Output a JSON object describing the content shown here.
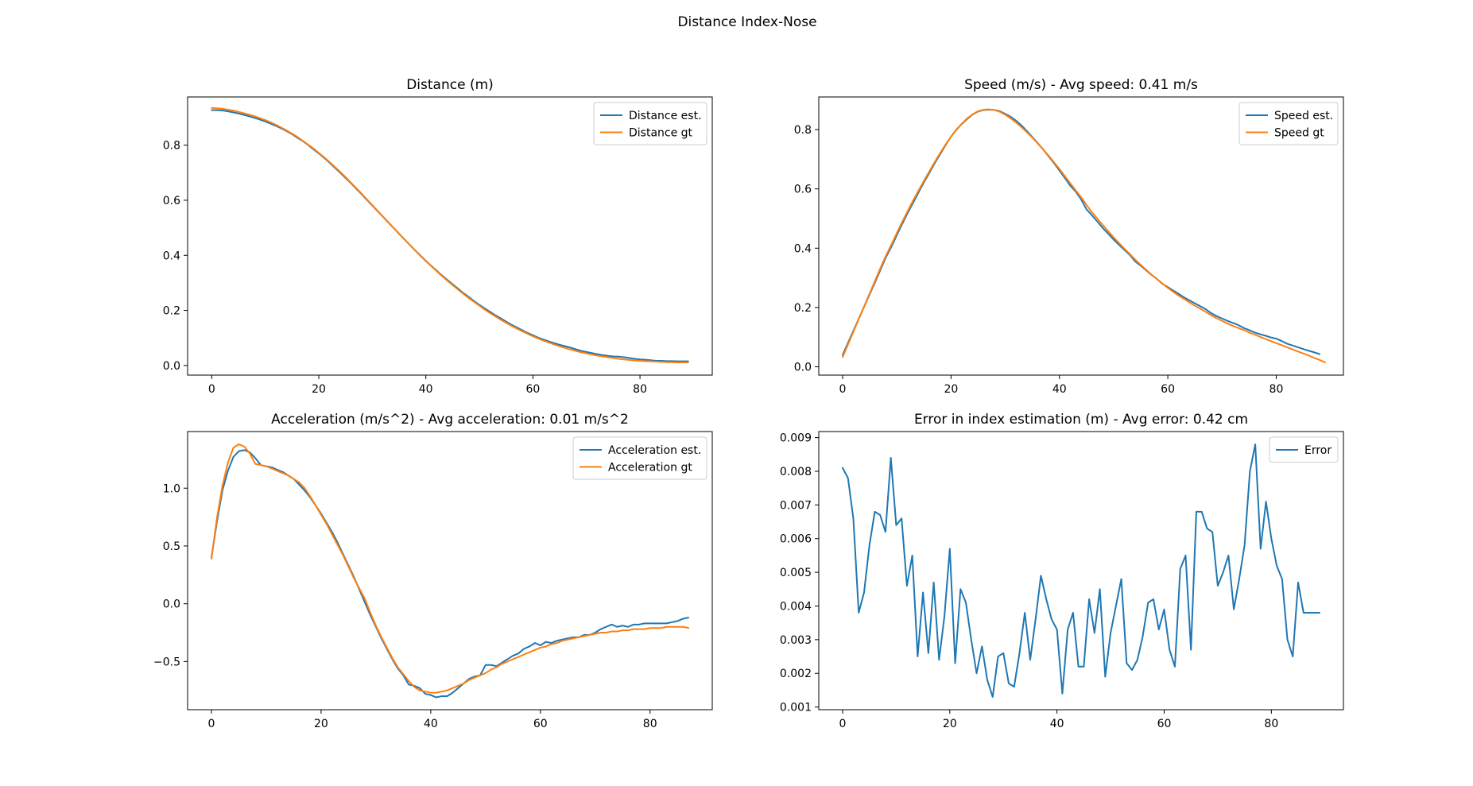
{
  "figure": {
    "title": "Distance Index-Nose",
    "colors": {
      "est": "#1f77b4",
      "gt": "#ff7f0e"
    }
  },
  "chart_data": [
    {
      "type": "line",
      "title": "Distance (m)",
      "xlim": [
        -4.5,
        93.5
      ],
      "ylim": [
        -0.035,
        0.975
      ],
      "xticks": [
        0,
        20,
        40,
        60,
        80
      ],
      "yticks": [
        0.0,
        0.2,
        0.4,
        0.6,
        0.8
      ],
      "ytick_labels": [
        "0.0",
        "0.2",
        "0.4",
        "0.6",
        "0.8"
      ],
      "legend_position": "upper right",
      "series": [
        {
          "name": "Distance est.",
          "color": "#1f77b4",
          "y": [
            0.927,
            0.927,
            0.926,
            0.923,
            0.919,
            0.915,
            0.91,
            0.905,
            0.899,
            0.893,
            0.886,
            0.878,
            0.87,
            0.861,
            0.851,
            0.84,
            0.827,
            0.815,
            0.801,
            0.785,
            0.77,
            0.754,
            0.737,
            0.718,
            0.7,
            0.681,
            0.662,
            0.642,
            0.622,
            0.601,
            0.581,
            0.56,
            0.54,
            0.519,
            0.499,
            0.478,
            0.458,
            0.438,
            0.418,
            0.399,
            0.38,
            0.362,
            0.345,
            0.327,
            0.311,
            0.295,
            0.279,
            0.263,
            0.249,
            0.234,
            0.22,
            0.207,
            0.195,
            0.182,
            0.171,
            0.159,
            0.148,
            0.138,
            0.128,
            0.118,
            0.11,
            0.101,
            0.094,
            0.087,
            0.081,
            0.075,
            0.07,
            0.065,
            0.059,
            0.053,
            0.049,
            0.045,
            0.041,
            0.038,
            0.035,
            0.033,
            0.032,
            0.03,
            0.027,
            0.024,
            0.022,
            0.021,
            0.019,
            0.017,
            0.017,
            0.016,
            0.016,
            0.015,
            0.015,
            0.015
          ]
        },
        {
          "name": "Distance gt",
          "color": "#ff7f0e",
          "y": [
            0.935,
            0.934,
            0.932,
            0.929,
            0.926,
            0.921,
            0.916,
            0.911,
            0.905,
            0.898,
            0.891,
            0.883,
            0.874,
            0.864,
            0.853,
            0.842,
            0.83,
            0.816,
            0.802,
            0.788,
            0.772,
            0.756,
            0.739,
            0.721,
            0.703,
            0.684,
            0.664,
            0.644,
            0.624,
            0.603,
            0.582,
            0.561,
            0.541,
            0.52,
            0.499,
            0.479,
            0.458,
            0.438,
            0.418,
            0.398,
            0.379,
            0.361,
            0.343,
            0.325,
            0.308,
            0.292,
            0.276,
            0.26,
            0.245,
            0.231,
            0.217,
            0.203,
            0.19,
            0.178,
            0.166,
            0.155,
            0.144,
            0.134,
            0.124,
            0.115,
            0.106,
            0.098,
            0.09,
            0.083,
            0.076,
            0.07,
            0.064,
            0.058,
            0.053,
            0.048,
            0.044,
            0.04,
            0.036,
            0.033,
            0.03,
            0.027,
            0.024,
            0.022,
            0.02,
            0.018,
            0.017,
            0.016,
            0.015,
            0.014,
            0.013,
            0.012,
            0.012,
            0.011,
            0.011,
            0.011
          ]
        }
      ]
    },
    {
      "type": "line",
      "title": "Speed (m/s) - Avg speed: 0.41 m/s",
      "xlim": [
        -4.4,
        92.4
      ],
      "ylim": [
        -0.028,
        0.91
      ],
      "xticks": [
        0,
        20,
        40,
        60,
        80
      ],
      "yticks": [
        0.0,
        0.2,
        0.4,
        0.6,
        0.8
      ],
      "ytick_labels": [
        "0.0",
        "0.2",
        "0.4",
        "0.6",
        "0.8"
      ],
      "legend_position": "upper right",
      "series": [
        {
          "name": "Speed est.",
          "color": "#1f77b4",
          "y": [
            0.04,
            0.081,
            0.122,
            0.163,
            0.204,
            0.245,
            0.286,
            0.328,
            0.37,
            0.405,
            0.444,
            0.482,
            0.519,
            0.553,
            0.588,
            0.622,
            0.654,
            0.687,
            0.717,
            0.748,
            0.776,
            0.8,
            0.819,
            0.836,
            0.851,
            0.861,
            0.866,
            0.867,
            0.866,
            0.862,
            0.853,
            0.843,
            0.83,
            0.814,
            0.795,
            0.775,
            0.754,
            0.733,
            0.71,
            0.687,
            0.662,
            0.637,
            0.611,
            0.591,
            0.565,
            0.531,
            0.511,
            0.49,
            0.468,
            0.449,
            0.429,
            0.411,
            0.394,
            0.377,
            0.355,
            0.341,
            0.325,
            0.31,
            0.296,
            0.28,
            0.269,
            0.257,
            0.246,
            0.234,
            0.224,
            0.214,
            0.204,
            0.194,
            0.181,
            0.171,
            0.163,
            0.155,
            0.148,
            0.141,
            0.131,
            0.124,
            0.116,
            0.11,
            0.105,
            0.099,
            0.095,
            0.087,
            0.078,
            0.072,
            0.066,
            0.06,
            0.054,
            0.049,
            0.043
          ]
        },
        {
          "name": "Speed gt",
          "color": "#ff7f0e",
          "y": [
            0.033,
            0.076,
            0.119,
            0.162,
            0.205,
            0.248,
            0.291,
            0.334,
            0.375,
            0.412,
            0.451,
            0.489,
            0.525,
            0.561,
            0.594,
            0.627,
            0.659,
            0.691,
            0.721,
            0.75,
            0.776,
            0.799,
            0.82,
            0.838,
            0.852,
            0.862,
            0.867,
            0.868,
            0.866,
            0.86,
            0.85,
            0.838,
            0.824,
            0.808,
            0.791,
            0.773,
            0.753,
            0.733,
            0.712,
            0.69,
            0.667,
            0.643,
            0.619,
            0.595,
            0.572,
            0.546,
            0.521,
            0.5,
            0.478,
            0.457,
            0.437,
            0.417,
            0.398,
            0.38,
            0.361,
            0.344,
            0.327,
            0.311,
            0.296,
            0.281,
            0.266,
            0.253,
            0.24,
            0.229,
            0.217,
            0.206,
            0.196,
            0.185,
            0.174,
            0.164,
            0.155,
            0.146,
            0.138,
            0.131,
            0.124,
            0.116,
            0.109,
            0.101,
            0.094,
            0.087,
            0.08,
            0.073,
            0.066,
            0.059,
            0.052,
            0.045,
            0.038,
            0.03,
            0.023,
            0.015
          ]
        }
      ]
    },
    {
      "type": "line",
      "title": "Acceleration (m/s^2) - Avg acceleration: 0.01 m/s^2",
      "xlim": [
        -4.35,
        91.35
      ],
      "ylim": [
        -0.917,
        1.49
      ],
      "xticks": [
        0,
        20,
        40,
        60,
        80
      ],
      "yticks": [
        -0.5,
        0.0,
        0.5,
        1.0
      ],
      "ytick_labels": [
        "−0.5",
        "0.0",
        "0.5",
        "1.0"
      ],
      "legend_position": "upper right",
      "series": [
        {
          "name": "Acceleration est.",
          "color": "#1f77b4",
          "y": [
            0.4,
            0.71,
            0.98,
            1.15,
            1.27,
            1.32,
            1.33,
            1.31,
            1.26,
            1.2,
            1.19,
            1.18,
            1.16,
            1.14,
            1.11,
            1.08,
            1.03,
            0.98,
            0.92,
            0.85,
            0.78,
            0.7,
            0.62,
            0.53,
            0.43,
            0.33,
            0.23,
            0.12,
            0.01,
            -0.1,
            -0.2,
            -0.3,
            -0.39,
            -0.48,
            -0.56,
            -0.62,
            -0.7,
            -0.71,
            -0.73,
            -0.78,
            -0.79,
            -0.81,
            -0.8,
            -0.8,
            -0.77,
            -0.73,
            -0.69,
            -0.65,
            -0.63,
            -0.62,
            -0.53,
            -0.53,
            -0.54,
            -0.51,
            -0.48,
            -0.45,
            -0.43,
            -0.39,
            -0.37,
            -0.34,
            -0.36,
            -0.33,
            -0.34,
            -0.32,
            -0.31,
            -0.3,
            -0.29,
            -0.29,
            -0.27,
            -0.27,
            -0.25,
            -0.22,
            -0.2,
            -0.18,
            -0.2,
            -0.19,
            -0.2,
            -0.18,
            -0.18,
            -0.17,
            -0.17,
            -0.17,
            -0.17,
            -0.17,
            -0.16,
            -0.15,
            -0.13,
            -0.12
          ]
        },
        {
          "name": "Acceleration gt",
          "color": "#ff7f0e",
          "y": [
            0.39,
            0.74,
            1.02,
            1.22,
            1.35,
            1.38,
            1.36,
            1.3,
            1.21,
            1.2,
            1.19,
            1.17,
            1.15,
            1.13,
            1.11,
            1.08,
            1.05,
            1.0,
            0.93,
            0.85,
            0.77,
            0.69,
            0.6,
            0.51,
            0.42,
            0.32,
            0.22,
            0.13,
            0.04,
            -0.08,
            -0.19,
            -0.29,
            -0.38,
            -0.47,
            -0.55,
            -0.61,
            -0.67,
            -0.72,
            -0.75,
            -0.76,
            -0.77,
            -0.77,
            -0.76,
            -0.75,
            -0.73,
            -0.71,
            -0.69,
            -0.66,
            -0.64,
            -0.62,
            -0.6,
            -0.57,
            -0.55,
            -0.52,
            -0.5,
            -0.48,
            -0.46,
            -0.44,
            -0.42,
            -0.4,
            -0.38,
            -0.37,
            -0.35,
            -0.34,
            -0.32,
            -0.31,
            -0.3,
            -0.29,
            -0.28,
            -0.27,
            -0.26,
            -0.25,
            -0.25,
            -0.24,
            -0.24,
            -0.23,
            -0.23,
            -0.22,
            -0.22,
            -0.22,
            -0.21,
            -0.21,
            -0.21,
            -0.2,
            -0.2,
            -0.2,
            -0.2,
            -0.21
          ]
        }
      ]
    },
    {
      "type": "line",
      "title": "Error in index estimation (m) - Avg error: 0.42 cm",
      "xlim": [
        -4.45,
        93.45
      ],
      "ylim": [
        0.00092,
        0.00918
      ],
      "xticks": [
        0,
        20,
        40,
        60,
        80
      ],
      "yticks": [
        0.001,
        0.002,
        0.003,
        0.004,
        0.005,
        0.006,
        0.007,
        0.008,
        0.009
      ],
      "ytick_labels": [
        "0.001",
        "0.002",
        "0.003",
        "0.004",
        "0.005",
        "0.006",
        "0.007",
        "0.008",
        "0.009"
      ],
      "legend_position": "upper right",
      "series": [
        {
          "name": "Error",
          "color": "#1f77b4",
          "y": [
            0.0081,
            0.0078,
            0.0066,
            0.0038,
            0.0044,
            0.0058,
            0.0068,
            0.0067,
            0.0062,
            0.0084,
            0.0064,
            0.0066,
            0.0046,
            0.0055,
            0.0025,
            0.0044,
            0.0026,
            0.0047,
            0.0024,
            0.0037,
            0.0057,
            0.0023,
            0.0045,
            0.0041,
            0.003,
            0.002,
            0.0028,
            0.0018,
            0.0013,
            0.0025,
            0.0026,
            0.0017,
            0.0016,
            0.0026,
            0.0038,
            0.0024,
            0.0036,
            0.0049,
            0.0042,
            0.0036,
            0.0033,
            0.0014,
            0.0033,
            0.0038,
            0.0022,
            0.0022,
            0.0042,
            0.0032,
            0.0045,
            0.0019,
            0.0032,
            0.004,
            0.0048,
            0.0023,
            0.0021,
            0.0024,
            0.0031,
            0.0041,
            0.0042,
            0.0033,
            0.0039,
            0.0027,
            0.0022,
            0.0051,
            0.0055,
            0.0027,
            0.0068,
            0.0068,
            0.0063,
            0.0062,
            0.0046,
            0.005,
            0.0055,
            0.0039,
            0.0048,
            0.0058,
            0.008,
            0.0088,
            0.0057,
            0.0071,
            0.006,
            0.0052,
            0.0048,
            0.003,
            0.0025,
            0.0047,
            0.0038,
            0.0038,
            0.0038,
            0.0038
          ]
        }
      ]
    }
  ]
}
